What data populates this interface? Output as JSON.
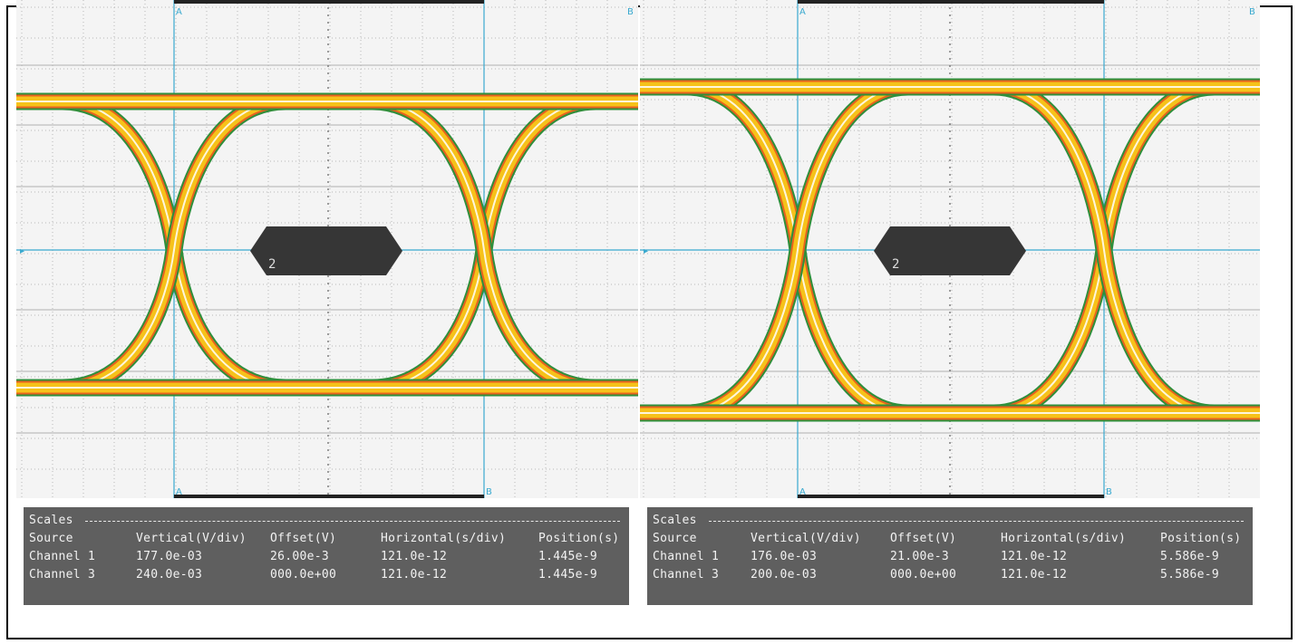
{
  "colors": {
    "grid_bg": "#f4f4f4",
    "grid_line": "#b8b8b8",
    "axis": "#39a9cf",
    "trace_core": "#ffffff",
    "trace_mid": "#f6c21a",
    "trace_hot": "#e8621f",
    "trace_edge": "#2f8f3b",
    "mask": "#363636",
    "panel_bg": "#5f5f5f",
    "panel_text": "#f2f2f2"
  },
  "scopes": [
    {
      "id": "left",
      "cursor_labels": [
        "A",
        "B",
        "A",
        "B"
      ],
      "mask_label": "2",
      "scales": {
        "heading": "Scales",
        "columns": [
          "Source",
          "Vertical(V/div)",
          "Offset(V)",
          "Horizontal(s/div)",
          "Position(s)"
        ],
        "rows": [
          [
            "Channel 1",
            "177.0e-03",
            "26.00e-3",
            "121.0e-12",
            "1.445e-9"
          ],
          [
            "Channel 3",
            "240.0e-03",
            "000.0e+00",
            "121.0e-12",
            "1.445e-9"
          ]
        ]
      }
    },
    {
      "id": "right",
      "cursor_labels": [
        "A",
        "B",
        "A",
        "B"
      ],
      "mask_label": "2",
      "scales": {
        "heading": "Scales",
        "columns": [
          "Source",
          "Vertical(V/div)",
          "Offset(V)",
          "Horizontal(s/div)",
          "Position(s)"
        ],
        "rows": [
          [
            "Channel 1",
            "176.0e-03",
            "21.00e-3",
            "121.0e-12",
            "5.586e-9"
          ],
          [
            "Channel 3",
            "200.0e-03",
            "000.0e+00",
            "121.0e-12",
            "5.586e-9"
          ]
        ]
      }
    }
  ]
}
